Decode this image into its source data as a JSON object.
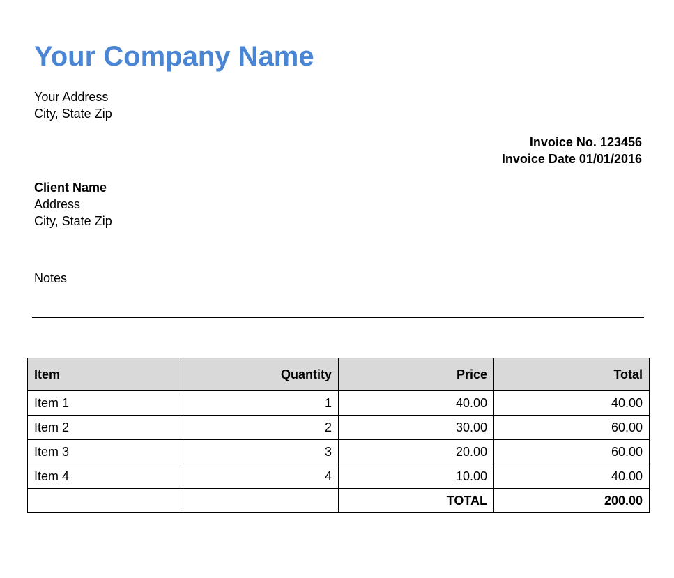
{
  "company": {
    "name": "Your Company Name",
    "address_line1": "Your Address",
    "address_line2": "City, State Zip"
  },
  "invoice": {
    "number_line": "Invoice No. 123456",
    "date_line": "Invoice Date 01/01/2016"
  },
  "client": {
    "name": "Client Name",
    "address_line1": "Address",
    "address_line2": "City, State Zip"
  },
  "notes": {
    "label": "Notes"
  },
  "table": {
    "headers": [
      "Item",
      "Quantity",
      "Price",
      "Total"
    ],
    "rows": [
      {
        "item": "Item 1",
        "quantity": "1",
        "price": "40.00",
        "total": "40.00"
      },
      {
        "item": "Item 2",
        "quantity": "2",
        "price": "30.00",
        "total": "60.00"
      },
      {
        "item": "Item 3",
        "quantity": "3",
        "price": "20.00",
        "total": "60.00"
      },
      {
        "item": "Item 4",
        "quantity": "4",
        "price": "10.00",
        "total": "40.00"
      }
    ],
    "total_label": "TOTAL",
    "total_value": "200.00"
  },
  "colors": {
    "company_name": "#4a86d4",
    "header_background": "#d9d9d9",
    "text": "#000000"
  }
}
